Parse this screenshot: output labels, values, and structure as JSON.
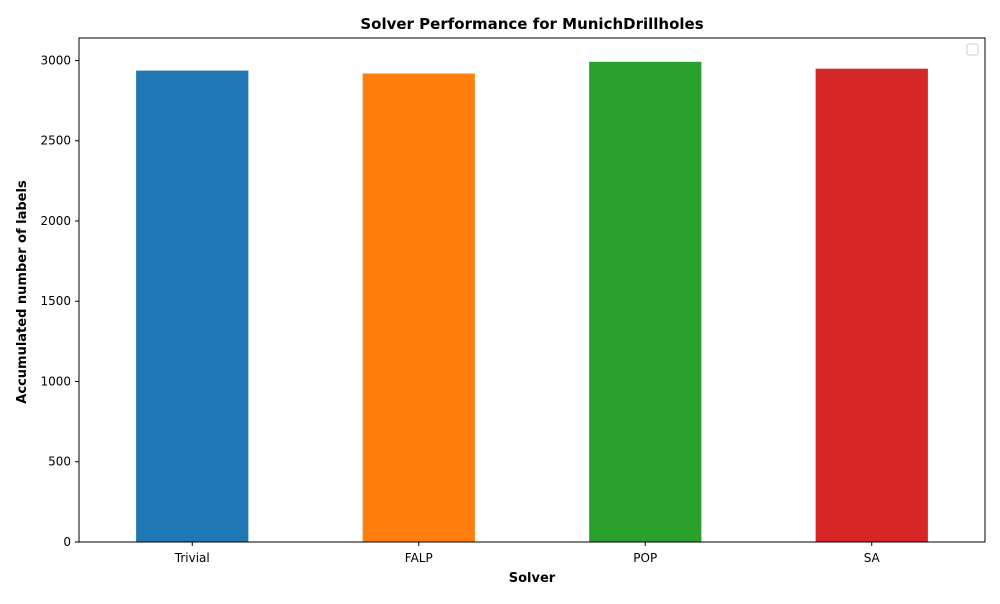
{
  "chart_data": {
    "type": "bar",
    "title": "Solver Performance for MunichDrillholes",
    "xlabel": "Solver",
    "ylabel": "Accumulated number of labels",
    "categories": [
      "Trivial",
      "FALP",
      "POP",
      "SA"
    ],
    "values": [
      2940,
      2922,
      2995,
      2952
    ],
    "colors": [
      "#1f77b4",
      "#ff7f0e",
      "#2ca02c",
      "#d62728"
    ],
    "ylim": [
      0,
      3140
    ],
    "yticks": [
      0,
      500,
      1000,
      1500,
      2000,
      2500,
      3000
    ],
    "grid": false,
    "legend": {
      "placement": "top-right",
      "entries": []
    }
  }
}
